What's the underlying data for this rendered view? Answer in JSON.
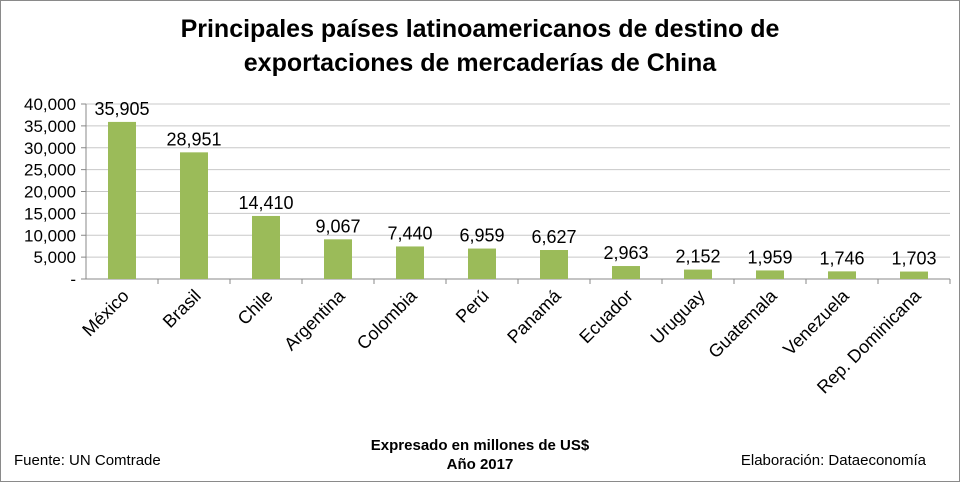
{
  "chart_data": {
    "type": "bar",
    "title_lines": [
      "Principales países latinoamericanos de destino de",
      "exportaciones de mercaderías de China"
    ],
    "categories": [
      "México",
      "Brasil",
      "Chile",
      "Argentina",
      "Colombia",
      "Perú",
      "Panamá",
      "Ecuador",
      "Uruguay",
      "Guatemala",
      "Venezuela",
      "Rep. Dominicana"
    ],
    "values": [
      35905,
      28951,
      14410,
      9067,
      7440,
      6959,
      6627,
      2963,
      2152,
      1959,
      1746,
      1703
    ],
    "value_labels": [
      "35,905",
      "28,951",
      "14,410",
      "9,067",
      "7,440",
      "6,959",
      "6,627",
      "2,963",
      "2,152",
      "1,959",
      "1,746",
      "1,703"
    ],
    "yticks": [
      {
        "value": 0,
        "label": "-"
      },
      {
        "value": 5000,
        "label": "5,000"
      },
      {
        "value": 10000,
        "label": "10,000"
      },
      {
        "value": 15000,
        "label": "15,000"
      },
      {
        "value": 20000,
        "label": "20,000"
      },
      {
        "value": 25000,
        "label": "25,000"
      },
      {
        "value": 30000,
        "label": "30,000"
      },
      {
        "value": 35000,
        "label": "35,000"
      },
      {
        "value": 40000,
        "label": "40,000"
      }
    ],
    "ylim": [
      0,
      40000
    ],
    "grid": true,
    "bar_color": "#9bbb59",
    "grid_color": "#c8c8c8"
  },
  "footer": {
    "source": "Fuente:  UN Comtrade",
    "note_line1": "Expresado en millones de US$",
    "note_line2": "Año 2017",
    "credit": "Elaboración: Dataeconomía"
  }
}
